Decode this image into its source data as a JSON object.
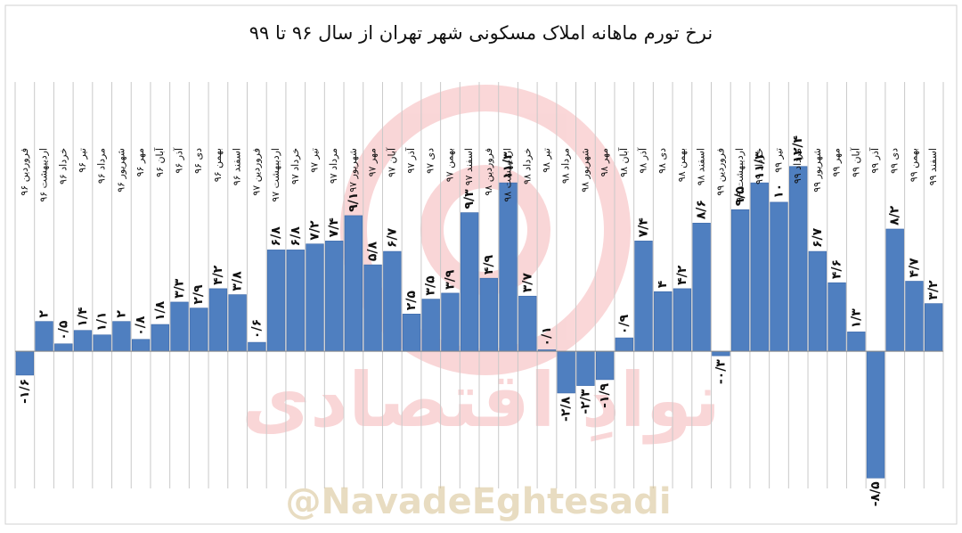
{
  "watermark": {
    "brand_text": "نوادِ اقتصادی",
    "handle": "@NavadeEghtesadi"
  },
  "colors": {
    "bar": "#4f7fc0",
    "bar_stroke": "#3c68a8",
    "grid": "#c9c9c9",
    "axis": "#888888",
    "label": "#111111",
    "watermark": "#e8484d",
    "watermark_text": "#d6c18f"
  },
  "chart_data": {
    "type": "bar",
    "title": "نرخ تورم ماهانه املاک مسکونی شهر تهران از سال ۹۶ تا ۹۹",
    "xlabel": "",
    "ylabel": "",
    "grid": "vertical",
    "ylim": [
      -9.2,
      13.4
    ],
    "categories": [
      "فروردین ۹۶",
      "اردیبهشت ۹۶",
      "خرداد ۹۶",
      "تیر ۹۶",
      "مرداد ۹۶",
      "شهریور ۹۶",
      "مهر ۹۶",
      "آبان ۹۶",
      "آذر ۹۶",
      "دی ۹۶",
      "بهمن ۹۶",
      "اسفند ۹۶",
      "فروردین ۹۷",
      "اردیبهشت ۹۷",
      "خرداد ۹۷",
      "تیر ۹۷",
      "مرداد ۹۷",
      "شهریور ۹۷",
      "مهر ۹۷",
      "آبان ۹۷",
      "آذر ۹۷",
      "دی ۹۷",
      "بهمن ۹۷",
      "اسفند ۹۷",
      "فروردین ۹۸",
      "اردیبهشت ۹۸",
      "خرداد ۹۸",
      "تیر ۹۸",
      "مرداد ۹۸",
      "شهریور ۹۸",
      "مهر ۹۸",
      "آبان ۹۸",
      "آذر ۹۸",
      "دی ۹۸",
      "بهمن ۹۸",
      "اسفند ۹۸",
      "فروردین ۹۹",
      "اردیبهشت ۹۹",
      "خرداد ۹۹",
      "تیر ۹۹",
      "مرداد ۹۹",
      "شهریور ۹۹",
      "مهر ۹۹",
      "آبان ۹۹",
      "آذر ۹۹",
      "دی ۹۹",
      "بهمن ۹۹",
      "اسفند ۹۹"
    ],
    "values": [
      -1.6,
      2,
      0.5,
      1.4,
      1.1,
      2,
      0.8,
      1.8,
      3.3,
      2.9,
      4.2,
      3.8,
      0.6,
      6.8,
      6.8,
      7.2,
      7.4,
      9.1,
      5.8,
      6.7,
      2.5,
      3.5,
      3.9,
      9.3,
      4.9,
      11.3,
      3.7,
      0.1,
      -2.8,
      -2.3,
      -1.9,
      0.9,
      7.4,
      4,
      4.2,
      8.6,
      -0.3,
      9.5,
      11.3,
      10,
      12.4,
      6.7,
      4.6,
      1.3,
      -8.5,
      8.2,
      4.7,
      3.2
    ],
    "data_labels": [
      "-۱/۶",
      "۲",
      "۰/۵",
      "۱/۴",
      "۱/۱",
      "۲",
      "۰/۸",
      "۱/۸",
      "۳/۳",
      "۲/۹",
      "۴/۲",
      "۳/۸",
      "۰/۶",
      "۶/۸",
      "۶/۸",
      "۷/۲",
      "۷/۴",
      "۹/۱",
      "۵/۸",
      "۶/۷",
      "۲/۵",
      "۳/۵",
      "۳/۹",
      "۹/۳",
      "۴/۹",
      "۱۱/۳",
      "۳/۷",
      "۰/۱",
      "-۲/۸",
      "-۲/۳",
      "-۱/۹",
      "۰/۹",
      "۷/۴",
      "۴",
      "۴/۲",
      "۸/۶",
      "-۰/۳",
      "۹/۵",
      "۱۱/۳",
      "۱۰",
      "۱۲/۴",
      "۶/۷",
      "۴/۶",
      "۱/۳",
      "-۸/۵",
      "۸/۲",
      "۴/۷",
      "۳/۲"
    ]
  }
}
